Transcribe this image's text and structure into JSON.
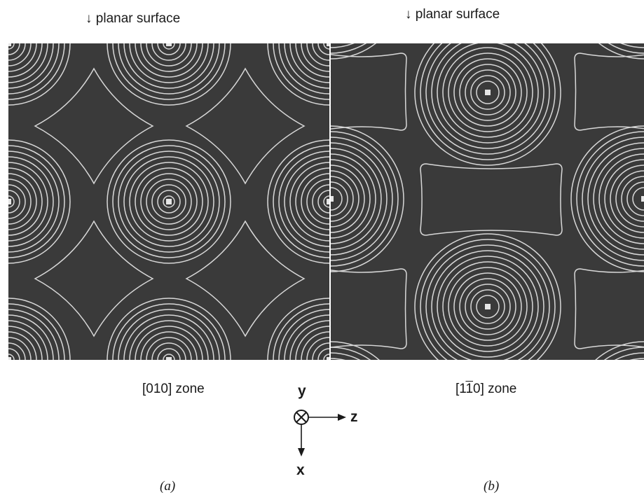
{
  "panel_a": {
    "surface_label": "↓ planar surface",
    "zone_label": "[010] zone",
    "caption": "(a)"
  },
  "panel_b": {
    "surface_label": "↓ planar surface",
    "zone_label_prefix": "[1",
    "zone_label_bar_digit": "1",
    "zone_label_suffix": "0] zone",
    "caption": "(b)"
  },
  "axes": {
    "y_label": "y",
    "z_label": "z",
    "x_label": "x"
  },
  "colors": {
    "background": "#3a3a3a",
    "contour": "#d8d8d8"
  }
}
